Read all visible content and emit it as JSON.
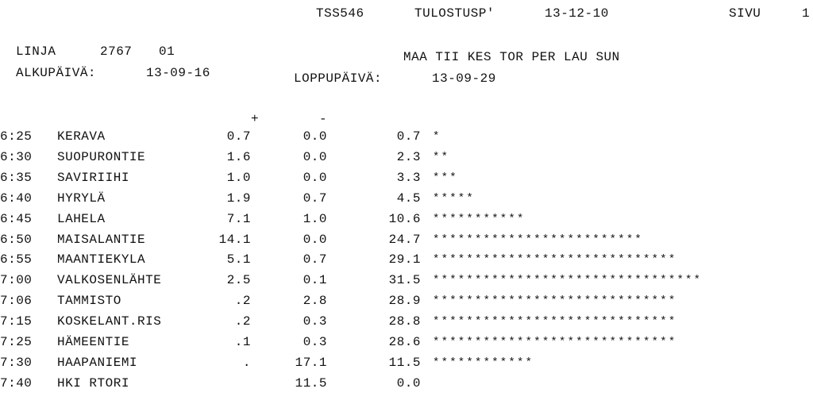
{
  "header": {
    "report_id": "TSS546",
    "report_name": "TULOSTUSP'",
    "date": "13-12-10",
    "page_label": "SIVU",
    "page_number": "1"
  },
  "line": {
    "line_label": "LINJA",
    "line_number": "2767",
    "line_variant": "01",
    "start_label": "ALKUPÄIVÄ:",
    "start_date": "13-09-16",
    "days": "MAA TII KES TOR PER LAU SUN",
    "end_label": "LOPPUPÄIVÄ:",
    "end_date": "13-09-29"
  },
  "table": {
    "col_plus": "+",
    "col_minus": "-",
    "rows": [
      {
        "time": "6:25",
        "stop": "KERAVA",
        "plus": "0.7",
        "minus": "0.0",
        "load": "0.7",
        "bar": "*"
      },
      {
        "time": "6:30",
        "stop": "SUOPURONTIE",
        "plus": "1.6",
        "minus": "0.0",
        "load": "2.3",
        "bar": "**"
      },
      {
        "time": "6:35",
        "stop": "SAVIRIIHI",
        "plus": "1.0",
        "minus": "0.0",
        "load": "3.3",
        "bar": "***"
      },
      {
        "time": "6:40",
        "stop": "HYRYLÄ",
        "plus": "1.9",
        "minus": "0.7",
        "load": "4.5",
        "bar": "*****"
      },
      {
        "time": "6:45",
        "stop": "LAHELA",
        "plus": "7.1",
        "minus": "1.0",
        "load": "10.6",
        "bar": "***********"
      },
      {
        "time": "6:50",
        "stop": "MAISALANTIE",
        "plus": "14.1",
        "minus": "0.0",
        "load": "24.7",
        "bar": "*************************"
      },
      {
        "time": "6:55",
        "stop": "MAANTIEKYLA",
        "plus": "5.1",
        "minus": "0.7",
        "load": "29.1",
        "bar": "*****************************"
      },
      {
        "time": "7:00",
        "stop": "VALKOSENLÄHTE",
        "plus": "2.5",
        "minus": "0.1",
        "load": "31.5",
        "bar": "********************************"
      },
      {
        "time": "7:06",
        "stop": "TAMMISTO",
        "plus": ".2",
        "minus": "2.8",
        "load": "28.9",
        "bar": "*****************************"
      },
      {
        "time": "7:15",
        "stop": "KOSKELANT.RIS",
        "plus": ".2",
        "minus": "0.3",
        "load": "28.8",
        "bar": "*****************************"
      },
      {
        "time": "7:25",
        "stop": "HÄMEENTIE",
        "plus": ".1",
        "minus": "0.3",
        "load": "28.6",
        "bar": "*****************************"
      },
      {
        "time": "7:30",
        "stop": "HAAPANIEMI",
        "plus": ".",
        "minus": "17.1",
        "load": "11.5",
        "bar": "************"
      },
      {
        "time": "7:40",
        "stop": "HKI RTORI",
        "plus": "",
        "minus": "11.5",
        "load": "0.0",
        "bar": ""
      }
    ]
  }
}
